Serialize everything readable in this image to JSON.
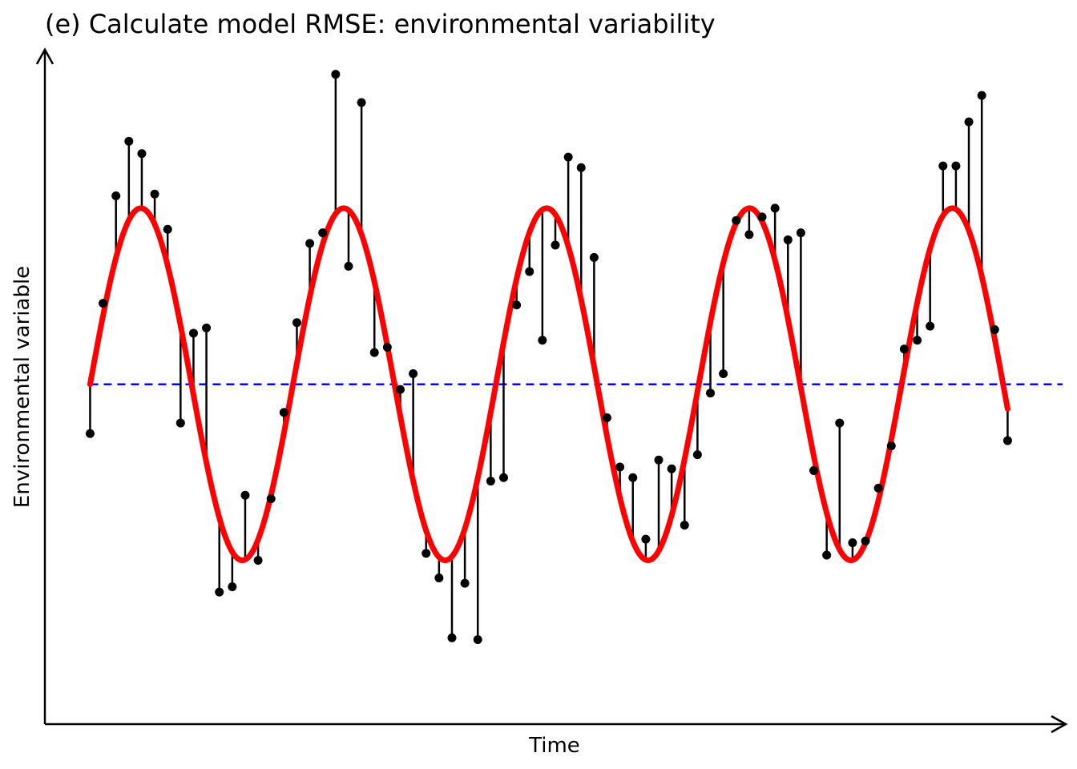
{
  "chart_data": {
    "type": "scatter",
    "title": "(e) Calculate model RMSE: environmental variability",
    "xlabel": "Time",
    "ylabel": "Environmental variable",
    "x_ticks_shown": false,
    "y_ticks_shown": false,
    "grid": false,
    "legend": "none",
    "xlim": [
      -3.5,
      75.5
    ],
    "ylim": [
      -1.93,
      1.9
    ],
    "model": {
      "kind": "sine",
      "amplitude": 1.0,
      "mean": 0.0,
      "period": 15.7,
      "x_start": 0,
      "x_end": 71,
      "color": "#ff0000"
    },
    "baseline": {
      "y": 0.0,
      "color": "#0000ff",
      "style": "dashed"
    },
    "residual_color": "#000000",
    "point_color": "#000000",
    "observations": {
      "x": [
        0,
        1,
        2,
        3,
        4,
        5,
        6,
        7,
        8,
        9,
        10,
        11,
        12,
        13,
        14,
        15,
        16,
        17,
        18,
        19,
        20,
        21,
        22,
        23,
        24,
        25,
        26,
        27,
        28,
        29,
        30,
        31,
        32,
        33,
        34,
        35,
        36,
        37,
        38,
        39,
        40,
        41,
        42,
        43,
        44,
        45,
        46,
        47,
        48,
        49,
        50,
        51,
        52,
        53,
        54,
        55,
        56,
        57,
        58,
        59,
        60,
        61,
        62,
        63,
        64,
        65,
        66,
        67,
        68,
        69,
        70,
        71
      ],
      "y": [
        -0.28,
        0.46,
        1.07,
        1.38,
        1.31,
        1.08,
        0.88,
        -0.22,
        0.29,
        0.32,
        -1.18,
        -1.15,
        -0.63,
        -1.0,
        -0.65,
        -0.16,
        0.35,
        0.8,
        0.86,
        1.76,
        0.67,
        1.6,
        0.18,
        0.21,
        -0.03,
        0.06,
        -0.96,
        -1.1,
        -1.44,
        -1.13,
        -1.45,
        -0.55,
        -0.53,
        0.45,
        0.64,
        0.25,
        0.79,
        1.29,
        1.23,
        0.72,
        -0.19,
        -0.47,
        -0.53,
        -0.88,
        -0.43,
        -0.48,
        -0.8,
        -0.4,
        -0.05,
        0.06,
        0.93,
        0.85,
        0.95,
        1.0,
        0.82,
        0.86,
        -0.49,
        -0.97,
        -0.22,
        -0.9,
        -0.89,
        -0.59,
        -0.35,
        0.2,
        0.25,
        0.33,
        1.24,
        1.24,
        1.49,
        1.64,
        0.31,
        -0.32
      ]
    }
  }
}
